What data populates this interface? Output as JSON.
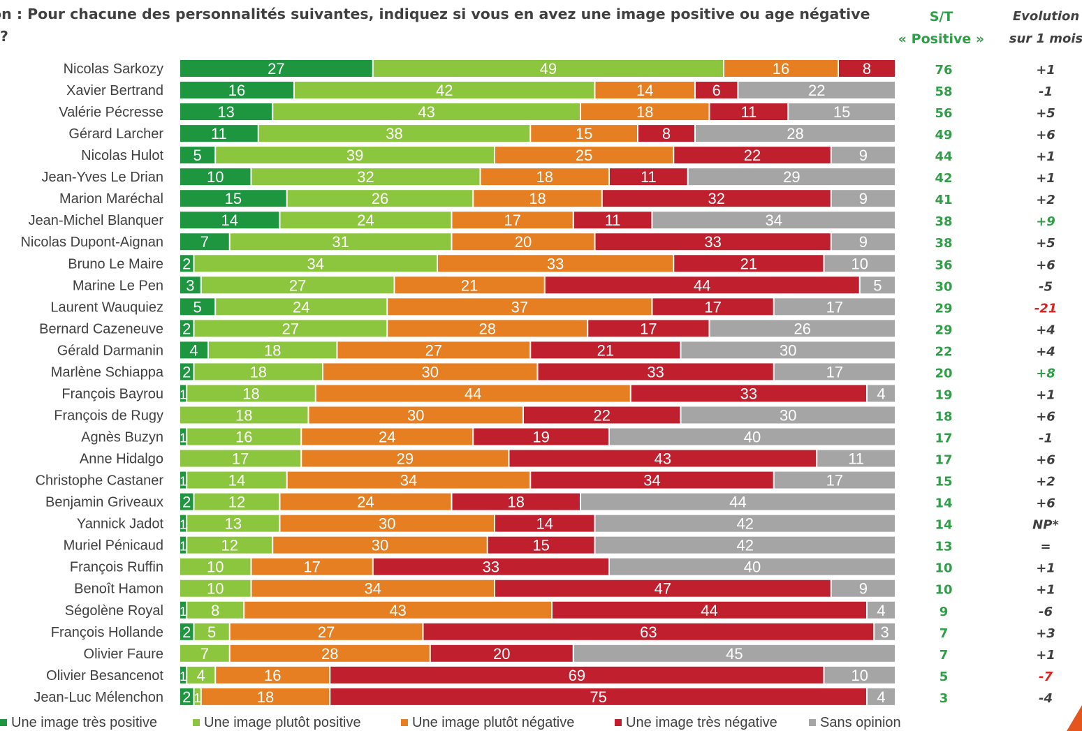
{
  "title": "on : Pour chacune des personnalités suivantes, indiquez si vous en avez une image positive ou age négative ?",
  "header_st_line1": "S/T",
  "header_st_line2": "« Positive »",
  "header_evo_line1": "Evolution",
  "header_evo_line2": "sur 1 mois",
  "colors": {
    "tres_positive": "#1e9640",
    "plutot_positive": "#8cc63e",
    "plutot_negative": "#e67e22",
    "tres_negative": "#c0202e",
    "sans_opinion": "#a5a5a5",
    "st_text": "#2e9e47",
    "evo_text": "#404040",
    "evo_positive_highlight": "#2e9e47",
    "evo_negative_highlight": "#e02020"
  },
  "chart_data": {
    "type": "bar",
    "orientation": "horizontal",
    "stacked": true,
    "categories": [
      "Nicolas Sarkozy",
      "Xavier Bertrand",
      "Valérie Pécresse",
      "Gérard Larcher",
      "Nicolas Hulot",
      "Jean-Yves Le Drian",
      "Marion Maréchal",
      "Jean-Michel Blanquer",
      "Nicolas Dupont-Aignan",
      "Bruno Le Maire",
      "Marine Le Pen",
      "Laurent Wauquiez",
      "Bernard Cazeneuve",
      "Gérald Darmanin",
      "Marlène Schiappa",
      "François Bayrou",
      "François de Rugy",
      "Agnès Buzyn",
      "Anne Hidalgo",
      "Christophe Castaner",
      "Benjamin Griveaux",
      "Yannick Jadot",
      "Muriel Pénicaud",
      "François Ruffin",
      "Benoît Hamon",
      "Ségolène Royal",
      "François Hollande",
      "Olivier Faure",
      "Olivier Besancenot",
      "Jean-Luc Mélenchon"
    ],
    "series": [
      {
        "name": "Une image très positive",
        "color_key": "tres_positive",
        "values": [
          27,
          16,
          13,
          11,
          5,
          10,
          15,
          14,
          7,
          2,
          3,
          5,
          2,
          4,
          2,
          1,
          0,
          1,
          0,
          1,
          2,
          1,
          1,
          0,
          0,
          1,
          2,
          0,
          1,
          2
        ]
      },
      {
        "name": "Une image plutôt positive",
        "color_key": "plutot_positive",
        "values": [
          49,
          42,
          43,
          38,
          39,
          32,
          26,
          24,
          31,
          34,
          27,
          24,
          27,
          18,
          18,
          18,
          18,
          16,
          17,
          14,
          12,
          13,
          12,
          10,
          10,
          8,
          5,
          7,
          4,
          1
        ]
      },
      {
        "name": "Une image plutôt négative",
        "color_key": "plutot_negative",
        "values": [
          16,
          14,
          18,
          15,
          25,
          18,
          18,
          17,
          20,
          33,
          21,
          37,
          28,
          27,
          30,
          44,
          30,
          24,
          29,
          34,
          24,
          30,
          30,
          17,
          34,
          43,
          27,
          28,
          16,
          18
        ]
      },
      {
        "name": "Une image très négative",
        "color_key": "tres_negative",
        "values": [
          8,
          6,
          11,
          8,
          22,
          11,
          32,
          11,
          33,
          21,
          44,
          17,
          17,
          21,
          33,
          33,
          22,
          19,
          43,
          34,
          18,
          14,
          15,
          33,
          47,
          44,
          63,
          20,
          69,
          75
        ]
      },
      {
        "name": "Sans opinion",
        "color_key": "sans_opinion",
        "values": [
          0,
          22,
          15,
          28,
          9,
          29,
          9,
          34,
          9,
          10,
          5,
          17,
          26,
          30,
          17,
          4,
          30,
          40,
          11,
          17,
          44,
          42,
          42,
          40,
          9,
          4,
          3,
          45,
          10,
          4
        ]
      }
    ],
    "st_positive": [
      "76",
      "58",
      "56",
      "49",
      "44",
      "42",
      "41",
      "38",
      "38",
      "36",
      "30",
      "29",
      "29",
      "22",
      "20",
      "19",
      "18",
      "17",
      "17",
      "15",
      "14",
      "14",
      "13",
      "10",
      "10",
      "9",
      "7",
      "7",
      "5",
      "3"
    ],
    "evolution": [
      "+1",
      "-1",
      "+5",
      "+6",
      "+1",
      "+1",
      "+2",
      "+9",
      "+5",
      "+6",
      "-5",
      "-21",
      "+4",
      "+4",
      "+8",
      "+1",
      "+6",
      "-1",
      "+6",
      "+2",
      "+6",
      "NP*",
      "=",
      "+1",
      "+1",
      "-6",
      "+3",
      "+1",
      "-7",
      "-4"
    ],
    "evolution_highlight": [
      "",
      "",
      "",
      "",
      "",
      "",
      "",
      "positive",
      "",
      "",
      "",
      "negative",
      "",
      "",
      "positive",
      "",
      "",
      "",
      "",
      "",
      "",
      "",
      "",
      "",
      "",
      "",
      "",
      "",
      "negative",
      ""
    ],
    "xlim": [
      0,
      100
    ],
    "legend_position": "bottom"
  }
}
